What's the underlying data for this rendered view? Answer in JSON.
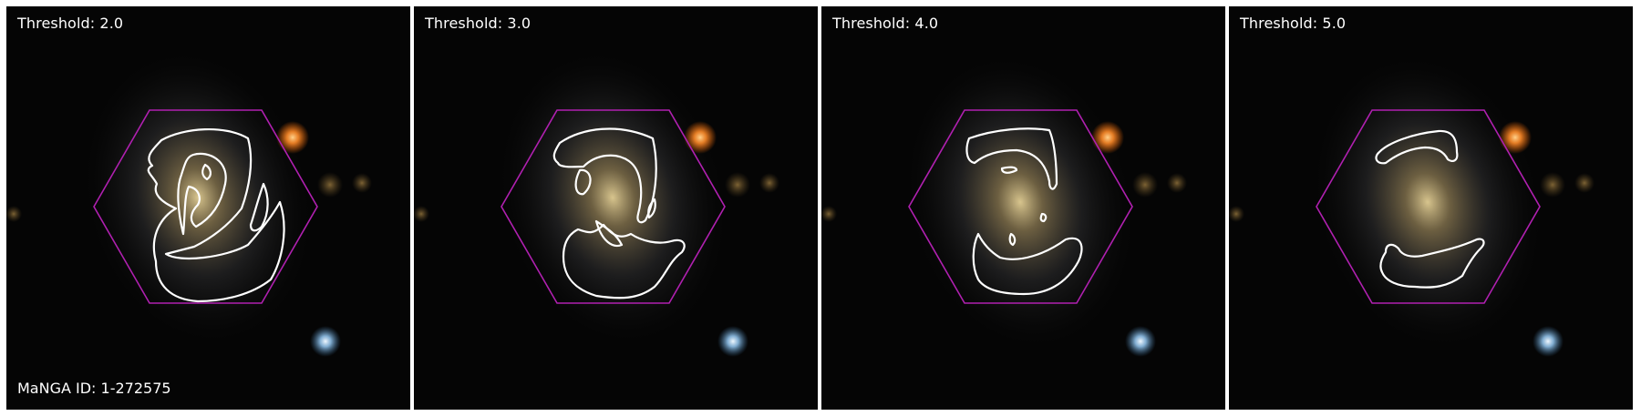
{
  "panels": [
    {
      "label": "Threshold: 2.0"
    },
    {
      "label": "Threshold: 3.0"
    },
    {
      "label": "Threshold: 4.0"
    },
    {
      "label": "Threshold: 5.0"
    }
  ],
  "manga_id_label": "MaNGA ID: 1-272575",
  "colors": {
    "background": "#050505",
    "hexagon": "#b020b0",
    "contour": "#ffffff",
    "galaxy_core": "#d8c48a",
    "orange_star": "#ff9a3c",
    "blue_star": "#bfe0ff"
  }
}
